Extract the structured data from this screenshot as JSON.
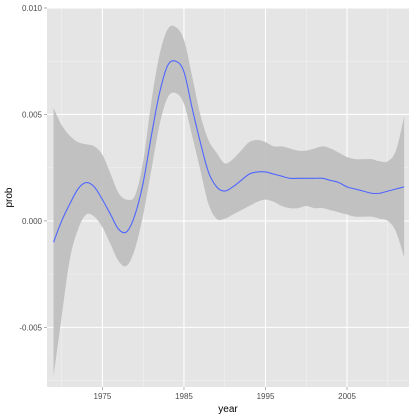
{
  "chart_data": {
    "type": "line",
    "xlabel": "year",
    "ylabel": "prob",
    "xlim": [
      1968.2,
      2012.6
    ],
    "ylim": [
      -0.0078,
      0.01
    ],
    "grid": true,
    "x_major_ticks": [
      1975,
      1985,
      1995,
      2005
    ],
    "x_minor_ticks": [
      1970,
      1980,
      1990,
      2000,
      2010
    ],
    "y_major_ticks": [
      {
        "value": -0.005,
        "label": "-0.005"
      },
      {
        "value": 0.0,
        "label": "0.000"
      },
      {
        "value": 0.005,
        "label": "0.005"
      },
      {
        "value": 0.01,
        "label": "0.010"
      }
    ],
    "y_minor_ticks": [
      -0.0075,
      -0.0025,
      0.0025,
      0.0075
    ],
    "colors": {
      "panel": "#e5e5e5",
      "grid": "#ffffff",
      "ribbon": "#bcbcbc",
      "line": "#4f66ff"
    },
    "series": [
      {
        "x": [
          1969,
          1970,
          1971,
          1972,
          1973,
          1974,
          1975,
          1976,
          1977,
          1978,
          1979,
          1980,
          1981,
          1982,
          1983,
          1984,
          1985,
          1986,
          1987,
          1988,
          1989,
          1990,
          1991,
          1992,
          1993,
          1994,
          1995,
          1996,
          1997,
          1998,
          1999,
          2000,
          2001,
          2002,
          2003,
          2004,
          2005,
          2006,
          2007,
          2008,
          2009,
          2010,
          2011,
          2012
        ],
        "y": [
          -0.001,
          0.0,
          0.0008,
          0.0015,
          0.0018,
          0.0016,
          0.001,
          0.0003,
          -0.0004,
          -0.0005,
          0.0003,
          0.0018,
          0.004,
          0.006,
          0.0073,
          0.0075,
          0.007,
          0.0053,
          0.0037,
          0.0023,
          0.0016,
          0.0014,
          0.0016,
          0.0019,
          0.0022,
          0.0023,
          0.0023,
          0.0022,
          0.0021,
          0.002,
          0.002,
          0.002,
          0.002,
          0.002,
          0.0019,
          0.0018,
          0.0016,
          0.0015,
          0.0014,
          0.0013,
          0.0013,
          0.0014,
          0.0015,
          0.0016
        ],
        "lower": [
          -0.0073,
          -0.0045,
          -0.0018,
          -0.0004,
          0.0003,
          0.0002,
          -0.0003,
          -0.0011,
          -0.0019,
          -0.0021,
          -0.0013,
          0.0003,
          0.0024,
          0.0045,
          0.0058,
          0.006,
          0.0055,
          0.004,
          0.0024,
          0.0008,
          0.0001,
          0.0001,
          0.0003,
          0.0005,
          0.0007,
          0.0009,
          0.001,
          0.0009,
          0.0007,
          0.0006,
          0.0006,
          0.0007,
          0.0006,
          0.0006,
          0.0005,
          0.0004,
          0.0003,
          0.0002,
          0.0002,
          0.0002,
          0.0001,
          0.0,
          -0.0005,
          -0.0017
        ],
        "upper": [
          0.0053,
          0.0045,
          0.004,
          0.0037,
          0.0036,
          0.0035,
          0.0031,
          0.0022,
          0.0013,
          0.001,
          0.0012,
          0.0028,
          0.0056,
          0.0078,
          0.009,
          0.0091,
          0.0085,
          0.0068,
          0.005,
          0.0038,
          0.0032,
          0.0027,
          0.0029,
          0.0033,
          0.0037,
          0.0038,
          0.0037,
          0.0035,
          0.0035,
          0.0034,
          0.0033,
          0.0033,
          0.0034,
          0.0035,
          0.0034,
          0.0032,
          0.003,
          0.0029,
          0.0029,
          0.0029,
          0.0028,
          0.0028,
          0.0033,
          0.0049
        ]
      }
    ]
  }
}
